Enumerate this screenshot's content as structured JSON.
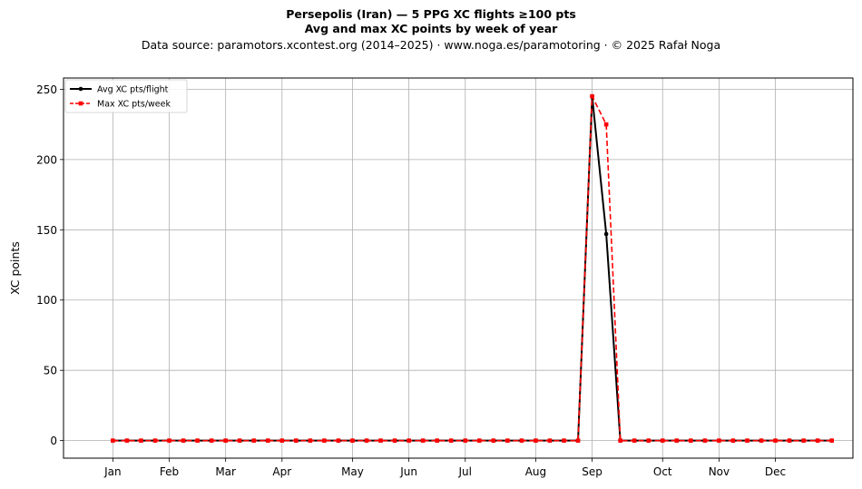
{
  "title": {
    "line1": "Persepolis (Iran)  —  5 PPG XC flights ≥100 pts",
    "line2": "Avg and max XC points by week of year",
    "line3": "Data source: paramotors.xcontest.org (2014–2025)  ·  www.noga.es/paramotoring  ·  © 2025 Rafał Noga"
  },
  "chart_data": {
    "type": "line",
    "title": "Persepolis (Iran)  —  5 PPG XC flights ≥100 pts",
    "subtitle": "Avg and max XC points by week of year",
    "xlabel": "",
    "ylabel": "XC points",
    "xlim": [
      -2.5,
      53.5
    ],
    "ylim": [
      -12.5,
      258
    ],
    "grid": true,
    "legend_position": "top-left",
    "x_ticks": [
      {
        "label": "Jan",
        "x": 1
      },
      {
        "label": "Feb",
        "x": 5
      },
      {
        "label": "Mar",
        "x": 9
      },
      {
        "label": "Apr",
        "x": 13
      },
      {
        "label": "May",
        "x": 18
      },
      {
        "label": "Jun",
        "x": 22
      },
      {
        "label": "Jul",
        "x": 26
      },
      {
        "label": "Aug",
        "x": 31
      },
      {
        "label": "Sep",
        "x": 35
      },
      {
        "label": "Oct",
        "x": 40
      },
      {
        "label": "Nov",
        "x": 44
      },
      {
        "label": "Dec",
        "x": 48
      }
    ],
    "y_ticks": [
      0,
      50,
      100,
      150,
      200,
      250
    ],
    "x": [
      1,
      2,
      3,
      4,
      5,
      6,
      7,
      8,
      9,
      10,
      11,
      12,
      13,
      14,
      15,
      16,
      17,
      18,
      19,
      20,
      21,
      22,
      23,
      24,
      25,
      26,
      27,
      28,
      29,
      30,
      31,
      32,
      33,
      34,
      35,
      36,
      37,
      38,
      39,
      40,
      41,
      42,
      43,
      44,
      45,
      46,
      47,
      48,
      49,
      50,
      51,
      52
    ],
    "series": [
      {
        "name": "Avg XC pts/flight",
        "color": "#000000",
        "style": "solid",
        "marker": "circle",
        "values": [
          0,
          0,
          0,
          0,
          0,
          0,
          0,
          0,
          0,
          0,
          0,
          0,
          0,
          0,
          0,
          0,
          0,
          0,
          0,
          0,
          0,
          0,
          0,
          0,
          0,
          0,
          0,
          0,
          0,
          0,
          0,
          0,
          0,
          0,
          245,
          147,
          0,
          0,
          0,
          0,
          0,
          0,
          0,
          0,
          0,
          0,
          0,
          0,
          0,
          0,
          0,
          0
        ]
      },
      {
        "name": "Max XC pts/week",
        "color": "#ff0000",
        "style": "dashed",
        "marker": "square",
        "values": [
          0,
          0,
          0,
          0,
          0,
          0,
          0,
          0,
          0,
          0,
          0,
          0,
          0,
          0,
          0,
          0,
          0,
          0,
          0,
          0,
          0,
          0,
          0,
          0,
          0,
          0,
          0,
          0,
          0,
          0,
          0,
          0,
          0,
          0,
          245,
          225,
          0,
          0,
          0,
          0,
          0,
          0,
          0,
          0,
          0,
          0,
          0,
          0,
          0,
          0,
          0,
          0
        ]
      }
    ]
  }
}
